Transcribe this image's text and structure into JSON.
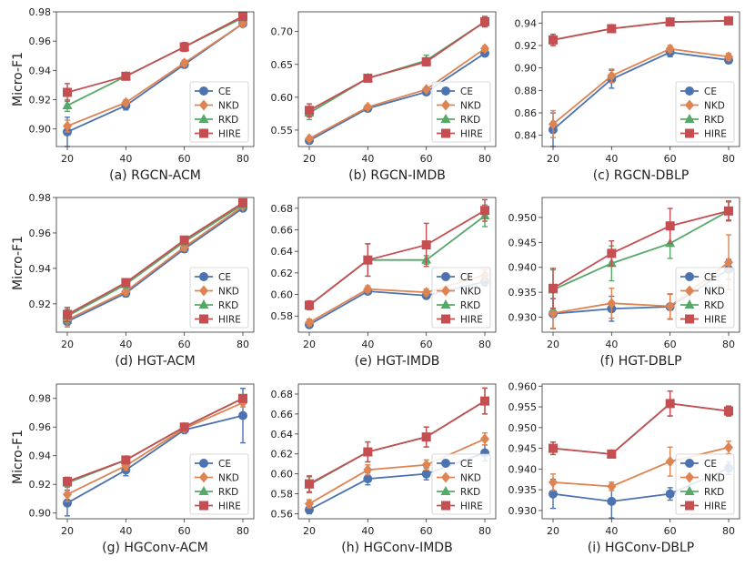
{
  "figure": {
    "ylabel": "Micro-F1",
    "colors": {
      "CE": "#4c72b0",
      "NKD": "#dd8452",
      "RKD": "#55a868",
      "HIRE": "#c44e52"
    },
    "markers": {
      "CE": "circle",
      "NKD": "diamond",
      "RKD": "triangle",
      "HIRE": "square"
    }
  },
  "chart_data": [
    {
      "type": "line",
      "title": "(a) RGCN-ACM",
      "x": [
        20,
        40,
        60,
        80
      ],
      "xticks": [
        20,
        40,
        60,
        80
      ],
      "ylim": [
        0.888,
        0.98
      ],
      "yticks": [
        0.9,
        0.92,
        0.94,
        0.96,
        0.98
      ],
      "ytick_labels": [
        "0.90",
        "0.92",
        "0.94",
        "0.96",
        "0.98"
      ],
      "legend": "lower-right",
      "series": [
        {
          "name": "CE",
          "values": [
            0.898,
            0.916,
            0.944,
            0.972
          ],
          "errors": [
            0.01,
            0.003,
            0.002,
            0.002
          ]
        },
        {
          "name": "NKD",
          "values": [
            0.902,
            0.918,
            0.945,
            0.972
          ],
          "errors": [
            0.004,
            0.002,
            0.002,
            0.001
          ]
        },
        {
          "name": "RKD",
          "values": [
            0.916,
            0.936,
            0.956,
            0.976
          ],
          "errors": [
            0.004,
            0.001,
            0.002,
            0.001
          ]
        },
        {
          "name": "HIRE",
          "values": [
            0.925,
            0.936,
            0.956,
            0.977
          ],
          "errors": [
            0.006,
            0.002,
            0.003,
            0.001
          ]
        }
      ]
    },
    {
      "type": "line",
      "title": "(b) RGCN-IMDB",
      "x": [
        20,
        40,
        60,
        80
      ],
      "xticks": [
        20,
        40,
        60,
        80
      ],
      "ylim": [
        0.525,
        0.73
      ],
      "yticks": [
        0.55,
        0.6,
        0.65,
        0.7
      ],
      "ytick_labels": [
        "0.55",
        "0.60",
        "0.65",
        "0.70"
      ],
      "legend": "lower-right",
      "series": [
        {
          "name": "CE",
          "values": [
            0.534,
            0.583,
            0.608,
            0.667
          ],
          "errors": [
            0.003,
            0.003,
            0.003,
            0.004
          ]
        },
        {
          "name": "NKD",
          "values": [
            0.537,
            0.585,
            0.612,
            0.674
          ],
          "errors": [
            0.003,
            0.003,
            0.003,
            0.004
          ]
        },
        {
          "name": "RKD",
          "values": [
            0.576,
            0.629,
            0.656,
            0.715
          ],
          "errors": [
            0.01,
            0.003,
            0.008,
            0.007
          ]
        },
        {
          "name": "HIRE",
          "values": [
            0.58,
            0.629,
            0.654,
            0.715
          ],
          "errors": [
            0.01,
            0.003,
            0.006,
            0.008
          ]
        }
      ]
    },
    {
      "type": "line",
      "title": "(c) RGCN-DBLP",
      "x": [
        20,
        40,
        60,
        80
      ],
      "xticks": [
        20,
        40,
        60,
        80
      ],
      "ylim": [
        0.83,
        0.95
      ],
      "yticks": [
        0.84,
        0.86,
        0.88,
        0.9,
        0.92,
        0.94
      ],
      "ytick_labels": [
        "0.84",
        "0.86",
        "0.88",
        "0.90",
        "0.92",
        "0.94"
      ],
      "legend": "lower-right",
      "series": [
        {
          "name": "CE",
          "values": [
            0.845,
            0.89,
            0.914,
            0.907
          ],
          "errors": [
            0.015,
            0.008,
            0.004,
            0.003
          ]
        },
        {
          "name": "NKD",
          "values": [
            0.85,
            0.893,
            0.917,
            0.91
          ],
          "errors": [
            0.012,
            0.006,
            0.003,
            0.003
          ]
        },
        {
          "name": "RKD",
          "values": [
            0.925,
            0.935,
            0.941,
            0.942
          ],
          "errors": [
            0.005,
            0.002,
            0.002,
            0.002
          ]
        },
        {
          "name": "HIRE",
          "values": [
            0.925,
            0.935,
            0.941,
            0.942
          ],
          "errors": [
            0.005,
            0.002,
            0.002,
            0.002
          ]
        }
      ]
    },
    {
      "type": "line",
      "title": "(d) HGT-ACM",
      "x": [
        20,
        40,
        60,
        80
      ],
      "xticks": [
        20,
        40,
        60,
        80
      ],
      "ylim": [
        0.904,
        0.98
      ],
      "yticks": [
        0.92,
        0.94,
        0.96,
        0.98
      ],
      "ytick_labels": [
        "0.92",
        "0.94",
        "0.96",
        "0.98"
      ],
      "legend": "lower-right",
      "series": [
        {
          "name": "CE",
          "values": [
            0.91,
            0.926,
            0.951,
            0.974
          ],
          "errors": [
            0.003,
            0.002,
            0.002,
            0.001
          ]
        },
        {
          "name": "NKD",
          "values": [
            0.911,
            0.927,
            0.952,
            0.975
          ],
          "errors": [
            0.004,
            0.002,
            0.002,
            0.001
          ]
        },
        {
          "name": "RKD",
          "values": [
            0.913,
            0.931,
            0.955,
            0.976
          ],
          "errors": [
            0.004,
            0.002,
            0.002,
            0.001
          ]
        },
        {
          "name": "HIRE",
          "values": [
            0.914,
            0.932,
            0.956,
            0.977
          ],
          "errors": [
            0.004,
            0.002,
            0.002,
            0.001
          ]
        }
      ]
    },
    {
      "type": "line",
      "title": "(e) HGT-IMDB",
      "x": [
        20,
        40,
        60,
        80
      ],
      "xticks": [
        20,
        40,
        60,
        80
      ],
      "ylim": [
        0.565,
        0.69
      ],
      "yticks": [
        0.58,
        0.6,
        0.62,
        0.64,
        0.66,
        0.68
      ],
      "ytick_labels": [
        "0.58",
        "0.60",
        "0.62",
        "0.64",
        "0.66",
        "0.68"
      ],
      "legend": "lower-right",
      "series": [
        {
          "name": "CE",
          "values": [
            0.572,
            0.603,
            0.599,
            0.612
          ],
          "errors": [
            0.003,
            0.003,
            0.003,
            0.004
          ]
        },
        {
          "name": "NKD",
          "values": [
            0.574,
            0.605,
            0.602,
            0.618
          ],
          "errors": [
            0.003,
            0.003,
            0.003,
            0.005
          ]
        },
        {
          "name": "RKD",
          "values": [
            0.59,
            0.632,
            0.632,
            0.673
          ],
          "errors": [
            0.004,
            0.015,
            0.004,
            0.01
          ]
        },
        {
          "name": "HIRE",
          "values": [
            0.59,
            0.632,
            0.646,
            0.678
          ],
          "errors": [
            0.004,
            0.015,
            0.02,
            0.01
          ]
        }
      ]
    },
    {
      "type": "line",
      "title": "(f) HGT-DBLP",
      "x": [
        20,
        40,
        60,
        80
      ],
      "xticks": [
        20,
        40,
        60,
        80
      ],
      "ylim": [
        0.927,
        0.954
      ],
      "yticks": [
        0.93,
        0.935,
        0.94,
        0.945,
        0.95
      ],
      "ytick_labels": [
        "0.930",
        "0.935",
        "0.940",
        "0.945",
        "0.950"
      ],
      "legend": "lower-right",
      "series": [
        {
          "name": "CE",
          "values": [
            0.9307,
            0.9317,
            0.9321,
            0.9396
          ],
          "errors": [
            0.003,
            0.0025,
            0.0025,
            0.002
          ]
        },
        {
          "name": "NKD",
          "values": [
            0.9308,
            0.9328,
            0.9322,
            0.941
          ],
          "errors": [
            0.003,
            0.003,
            0.0025,
            0.0055
          ]
        },
        {
          "name": "RKD",
          "values": [
            0.9355,
            0.9408,
            0.9448,
            0.9513
          ],
          "errors": [
            0.004,
            0.0035,
            0.003,
            0.0018
          ]
        },
        {
          "name": "HIRE",
          "values": [
            0.9358,
            0.9428,
            0.9483,
            0.9513
          ],
          "errors": [
            0.004,
            0.0025,
            0.0035,
            0.002
          ]
        }
      ]
    },
    {
      "type": "line",
      "title": "(g) HGConv-ACM",
      "x": [
        20,
        40,
        60,
        80
      ],
      "xticks": [
        20,
        40,
        60,
        80
      ],
      "ylim": [
        0.896,
        0.99
      ],
      "yticks": [
        0.9,
        0.92,
        0.94,
        0.96,
        0.98
      ],
      "ytick_labels": [
        "0.90",
        "0.92",
        "0.94",
        "0.96",
        "0.98"
      ],
      "legend": "lower-right",
      "series": [
        {
          "name": "CE",
          "values": [
            0.907,
            0.93,
            0.958,
            0.968
          ],
          "errors": [
            0.009,
            0.004,
            0.002,
            0.019
          ]
        },
        {
          "name": "NKD",
          "values": [
            0.913,
            0.933,
            0.959,
            0.977
          ],
          "errors": [
            0.005,
            0.003,
            0.002,
            0.003
          ]
        },
        {
          "name": "RKD",
          "values": [
            0.921,
            0.937,
            0.96,
            0.98
          ],
          "errors": [
            0.003,
            0.002,
            0.002,
            0.002
          ]
        },
        {
          "name": "HIRE",
          "values": [
            0.922,
            0.937,
            0.96,
            0.98
          ],
          "errors": [
            0.003,
            0.002,
            0.002,
            0.002
          ]
        }
      ]
    },
    {
      "type": "line",
      "title": "(h) HGConv-IMDB",
      "x": [
        20,
        40,
        60,
        80
      ],
      "xticks": [
        20,
        40,
        60,
        80
      ],
      "ylim": [
        0.555,
        0.69
      ],
      "yticks": [
        0.56,
        0.58,
        0.6,
        0.62,
        0.64,
        0.66,
        0.68
      ],
      "ytick_labels": [
        "0.56",
        "0.58",
        "0.60",
        "0.62",
        "0.64",
        "0.66",
        "0.68"
      ],
      "legend": "lower-right",
      "series": [
        {
          "name": "CE",
          "values": [
            0.564,
            0.595,
            0.6,
            0.621
          ],
          "errors": [
            0.004,
            0.006,
            0.006,
            0.008
          ]
        },
        {
          "name": "NKD",
          "values": [
            0.57,
            0.604,
            0.609,
            0.635
          ],
          "errors": [
            0.004,
            0.005,
            0.005,
            0.006
          ]
        },
        {
          "name": "RKD",
          "values": [
            0.589,
            0.622,
            0.637,
            0.673
          ],
          "errors": [
            0.008,
            0.01,
            0.01,
            0.013
          ]
        },
        {
          "name": "HIRE",
          "values": [
            0.59,
            0.622,
            0.637,
            0.673
          ],
          "errors": [
            0.008,
            0.01,
            0.01,
            0.013
          ]
        }
      ]
    },
    {
      "type": "line",
      "title": "(i) HGConv-DBLP",
      "x": [
        20,
        40,
        60,
        80
      ],
      "xticks": [
        20,
        40,
        60,
        80
      ],
      "ylim": [
        0.928,
        0.9605
      ],
      "yticks": [
        0.93,
        0.935,
        0.94,
        0.945,
        0.95,
        0.955,
        0.96
      ],
      "ytick_labels": [
        "0.930",
        "0.935",
        "0.940",
        "0.945",
        "0.950",
        "0.955",
        "0.960"
      ],
      "legend": "lower-right",
      "series": [
        {
          "name": "CE",
          "values": [
            0.934,
            0.9322,
            0.934,
            0.9402
          ],
          "errors": [
            0.0035,
            0.004,
            0.0015,
            0.0015
          ]
        },
        {
          "name": "NKD",
          "values": [
            0.9368,
            0.9358,
            0.9418,
            0.9452
          ],
          "errors": [
            0.002,
            0.001,
            0.0035,
            0.0015
          ]
        },
        {
          "name": "RKD",
          "values": [
            0.945,
            0.9436,
            0.9558,
            0.954
          ],
          "errors": [
            0.0015,
            0.0008,
            0.003,
            0.0012
          ]
        },
        {
          "name": "HIRE",
          "values": [
            0.945,
            0.9436,
            0.9558,
            0.954
          ],
          "errors": [
            0.0015,
            0.0008,
            0.003,
            0.0012
          ]
        }
      ]
    }
  ]
}
